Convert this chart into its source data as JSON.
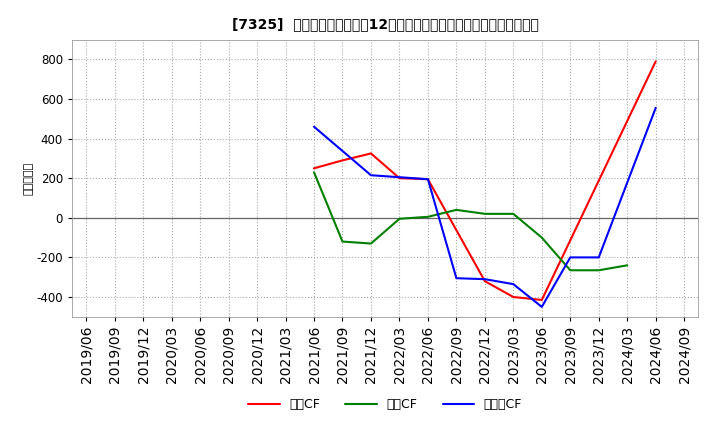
{
  "title": "[7325]  キャッシュフローの12か月移動合計の対前年同期増減額の推移",
  "ylabel": "（百万円）",
  "background_color": "#ffffff",
  "plot_bg_color": "#ffffff",
  "grid_color": "#aaaaaa",
  "x_labels": [
    "2019/06",
    "2019/09",
    "2019/12",
    "2020/03",
    "2020/06",
    "2020/09",
    "2020/12",
    "2021/03",
    "2021/06",
    "2021/09",
    "2021/12",
    "2022/03",
    "2022/06",
    "2022/09",
    "2022/12",
    "2023/03",
    "2023/06",
    "2023/09",
    "2023/12",
    "2024/03",
    "2024/06",
    "2024/09"
  ],
  "op_x": [
    8,
    9,
    10,
    11,
    12,
    14,
    15,
    16,
    20
  ],
  "op_y": [
    250,
    290,
    325,
    200,
    195,
    -320,
    -400,
    -415,
    790
  ],
  "inv_x": [
    8,
    9,
    10,
    11,
    12,
    13,
    14,
    15,
    16,
    17,
    18,
    19
  ],
  "inv_y": [
    230,
    -120,
    -130,
    -5,
    5,
    40,
    20,
    20,
    -100,
    -265,
    -265,
    -240
  ],
  "free_x": [
    8,
    10,
    11,
    12,
    13,
    14,
    15,
    16,
    17,
    18,
    20
  ],
  "free_y": [
    460,
    215,
    205,
    195,
    -305,
    -310,
    -335,
    -450,
    -200,
    -200,
    555
  ],
  "ylim": [
    -500,
    900
  ],
  "yticks": [
    -400,
    -200,
    0,
    200,
    400,
    600,
    800
  ],
  "line_colors": {
    "operating": "#ff0000",
    "investing": "#008000",
    "free": "#0000ff"
  },
  "legend_labels": [
    "営業CF",
    "投資CF",
    "フリーCF"
  ]
}
